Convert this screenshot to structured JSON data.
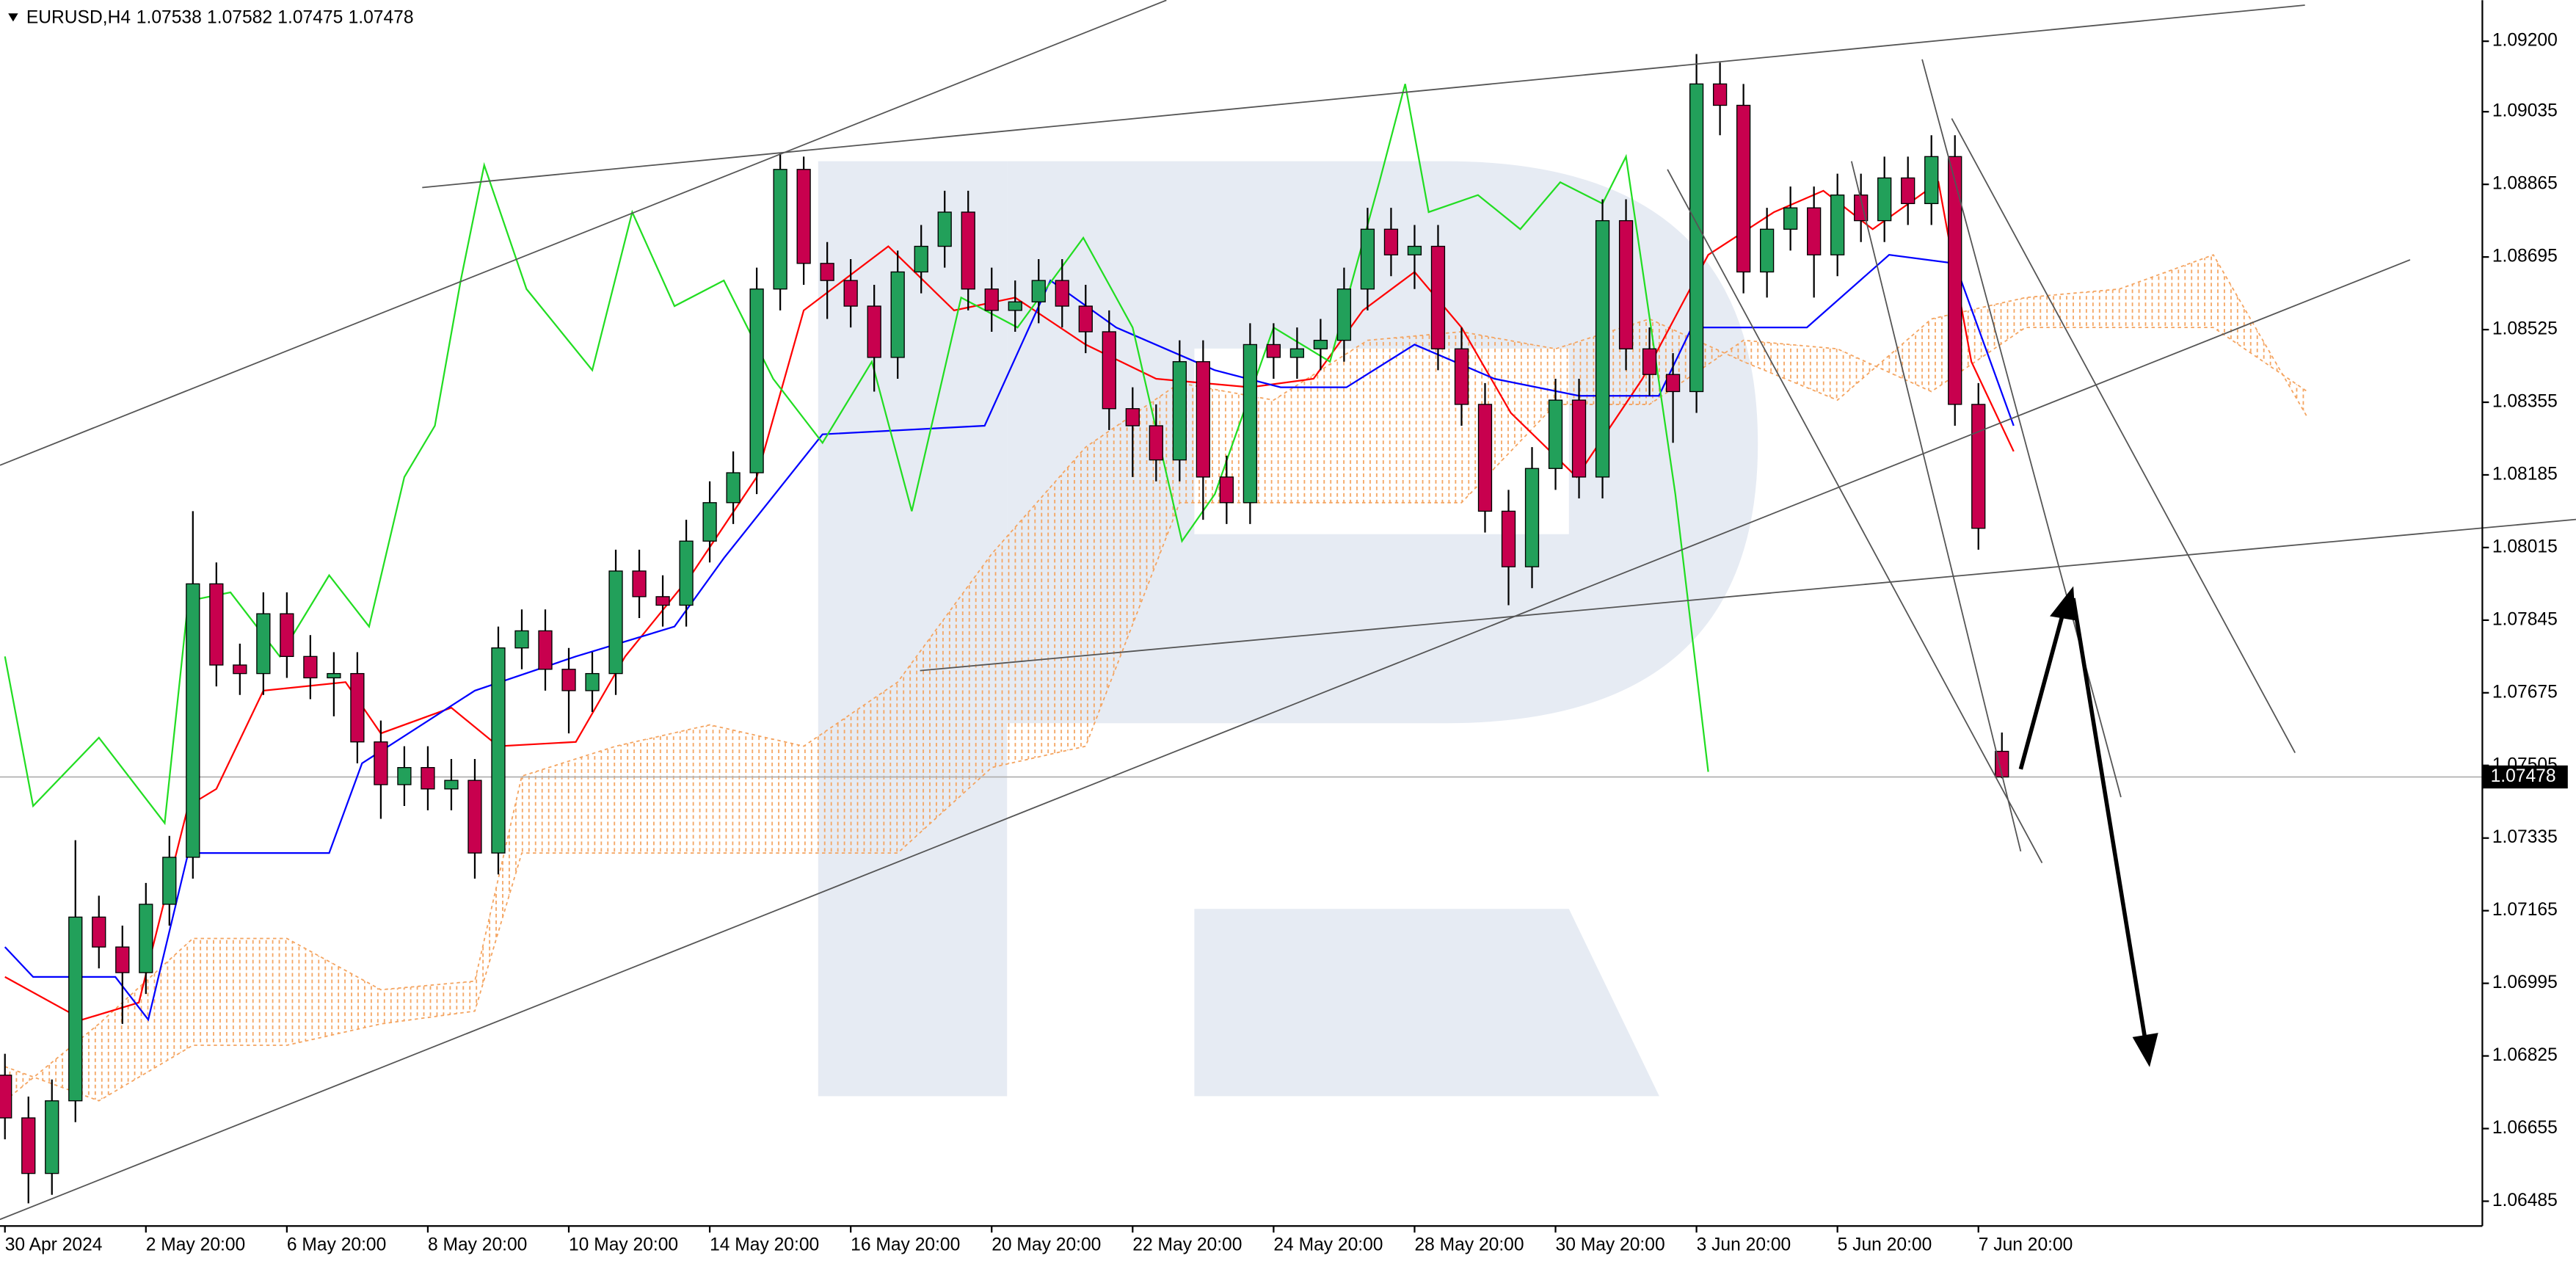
{
  "chart_data": {
    "type": "candlestick",
    "symbol": "EURUSD,H4",
    "up_color": "#22a05a",
    "down_color": "#c8004e",
    "open": [
      1.0678,
      1.0668,
      1.0655,
      1.0672,
      1.0715,
      1.0708,
      1.0702,
      1.0718,
      1.0729,
      1.0793,
      1.0774,
      1.0772,
      1.0786,
      1.0776,
      1.0771,
      1.0772,
      1.0756,
      1.0746,
      1.075,
      1.0745,
      1.0747,
      1.073,
      1.0778,
      1.0782,
      1.0773,
      1.0768,
      1.0772,
      1.0796,
      1.079,
      1.0788,
      1.0803,
      1.0812,
      1.0819,
      1.0862,
      1.089,
      1.0868,
      1.0864,
      1.0858,
      1.0846,
      1.0866,
      1.0872,
      1.088,
      1.0862,
      1.0857,
      1.0859,
      1.0864,
      1.0858,
      1.0852,
      1.0834,
      1.083,
      1.0822,
      1.0845,
      1.0818,
      1.0812,
      1.0849,
      1.0846,
      1.0848,
      1.085,
      1.0862,
      1.0876,
      1.087,
      1.0872,
      1.0848,
      1.0835,
      1.081,
      1.0797,
      1.082,
      1.0836,
      1.0818,
      1.0878,
      1.0848,
      1.0842,
      1.0838,
      1.091,
      1.0905,
      1.0866,
      1.0876,
      1.0881,
      1.087,
      1.0884,
      1.0878,
      1.0888,
      1.0882,
      1.0893,
      1.0835,
      1.07538
    ],
    "high": [
      1.0683,
      1.0673,
      1.0677,
      1.0733,
      1.072,
      1.0713,
      1.0723,
      1.0734,
      1.081,
      1.0798,
      1.0779,
      1.0791,
      1.0791,
      1.0781,
      1.0777,
      1.0777,
      1.0761,
      1.0755,
      1.0755,
      1.0752,
      1.0752,
      1.0783,
      1.0787,
      1.0787,
      1.0778,
      1.0777,
      1.0801,
      1.0801,
      1.0795,
      1.0808,
      1.0817,
      1.0824,
      1.0867,
      1.0894,
      1.0893,
      1.0873,
      1.0869,
      1.0863,
      1.0871,
      1.0877,
      1.0885,
      1.0885,
      1.0867,
      1.0864,
      1.0869,
      1.0869,
      1.0863,
      1.0857,
      1.0839,
      1.0835,
      1.085,
      1.085,
      1.0823,
      1.0854,
      1.0854,
      1.0853,
      1.0855,
      1.0867,
      1.0881,
      1.0881,
      1.0877,
      1.0877,
      1.0853,
      1.084,
      1.0815,
      1.0825,
      1.0841,
      1.0841,
      1.0883,
      1.0883,
      1.0853,
      1.0847,
      1.0917,
      1.0915,
      1.091,
      1.0881,
      1.0886,
      1.0886,
      1.0889,
      1.0889,
      1.0893,
      1.0893,
      1.0898,
      1.0898,
      1.084,
      1.07582
    ],
    "low": [
      1.0663,
      1.0648,
      1.065,
      1.0667,
      1.0703,
      1.069,
      1.0697,
      1.0713,
      1.0724,
      1.0769,
      1.0767,
      1.0767,
      1.0771,
      1.0766,
      1.0762,
      1.0751,
      1.0738,
      1.0741,
      1.074,
      1.074,
      1.0724,
      1.0725,
      1.0773,
      1.0768,
      1.0758,
      1.0763,
      1.0767,
      1.0785,
      1.0783,
      1.0783,
      1.0798,
      1.0807,
      1.0814,
      1.0857,
      1.0863,
      1.0855,
      1.0853,
      1.0838,
      1.0841,
      1.0861,
      1.0867,
      1.0857,
      1.0852,
      1.0852,
      1.0854,
      1.0853,
      1.0847,
      1.0829,
      1.0818,
      1.0817,
      1.0817,
      1.0808,
      1.0807,
      1.0807,
      1.0841,
      1.0841,
      1.0843,
      1.0845,
      1.0857,
      1.0865,
      1.0862,
      1.0843,
      1.083,
      1.0805,
      1.0788,
      1.0792,
      1.0815,
      1.0813,
      1.0813,
      1.0843,
      1.0837,
      1.0826,
      1.0833,
      1.0898,
      1.0861,
      1.086,
      1.0871,
      1.086,
      1.0865,
      1.0873,
      1.0873,
      1.0877,
      1.0877,
      1.083,
      1.0801,
      1.07475
    ],
    "close": [
      1.0668,
      1.0655,
      1.0672,
      1.0715,
      1.0708,
      1.0702,
      1.0718,
      1.0729,
      1.0793,
      1.0774,
      1.0772,
      1.0786,
      1.0776,
      1.0771,
      1.0772,
      1.0756,
      1.0746,
      1.075,
      1.0745,
      1.0747,
      1.073,
      1.0778,
      1.0782,
      1.0773,
      1.0768,
      1.0772,
      1.0796,
      1.079,
      1.0788,
      1.0803,
      1.0812,
      1.0819,
      1.0862,
      1.089,
      1.0868,
      1.0864,
      1.0858,
      1.0846,
      1.0866,
      1.0872,
      1.088,
      1.0862,
      1.0857,
      1.0859,
      1.0864,
      1.0858,
      1.0852,
      1.0834,
      1.083,
      1.0822,
      1.0845,
      1.0818,
      1.0812,
      1.0849,
      1.0846,
      1.0848,
      1.085,
      1.0862,
      1.0876,
      1.087,
      1.0872,
      1.0848,
      1.0835,
      1.081,
      1.0797,
      1.082,
      1.0836,
      1.0818,
      1.0878,
      1.0848,
      1.0842,
      1.0838,
      1.091,
      1.0905,
      1.0866,
      1.0876,
      1.0881,
      1.087,
      1.0884,
      1.0878,
      1.0888,
      1.0882,
      1.0893,
      1.0835,
      1.0806,
      1.07478
    ],
    "lines": [
      {
        "color": "#ff0000",
        "x": [
          0,
          3.3,
          5.7,
          7.8,
          9,
          11,
          14.5,
          16,
          19,
          21,
          24.3,
          26.4,
          29.2,
          32,
          34,
          37.6,
          40.4,
          43,
          46,
          49,
          53,
          55.7,
          57.8,
          60,
          62,
          64.1,
          66.9,
          69.7,
          72.5,
          75.3,
          77.4,
          79.5,
          82.3,
          83.7,
          85.5
        ],
        "values": [
          1.0701,
          1.0691,
          1.0695,
          1.0741,
          1.0745,
          1.0768,
          1.077,
          1.0758,
          1.0764,
          1.0755,
          1.0756,
          1.0776,
          1.0795,
          1.0818,
          1.0857,
          1.0872,
          1.0857,
          1.086,
          1.0849,
          1.0841,
          1.0839,
          1.0841,
          1.0857,
          1.0866,
          1.0853,
          1.0833,
          1.0818,
          1.0841,
          1.087,
          1.088,
          1.0885,
          1.0876,
          1.0887,
          1.0845,
          1.0824
        ]
      },
      {
        "color": "#0000ff",
        "x": [
          0,
          1.2,
          4.7,
          6.1,
          7.8,
          13.8,
          15.2,
          20,
          24.3,
          28.5,
          30.6,
          34.8,
          41.7,
          44.5,
          47.3,
          51.5,
          54.3,
          57.1,
          60,
          63.4,
          67,
          70.4,
          71.8,
          76.7,
          80.2,
          83,
          85.5
        ],
        "values": [
          1.0708,
          1.0701,
          1.0701,
          1.0691,
          1.073,
          1.073,
          1.0751,
          1.0768,
          1.0776,
          1.0783,
          1.0799,
          1.0828,
          1.083,
          1.0864,
          1.0853,
          1.0843,
          1.0839,
          1.0839,
          1.0849,
          1.0841,
          1.0837,
          1.0837,
          1.0853,
          1.0853,
          1.087,
          1.0868,
          1.083
        ]
      },
      {
        "color": "#22dd22",
        "x": [
          0,
          1.2,
          4,
          6.8,
          7.8,
          9.6,
          11.7,
          13.8,
          15.5,
          17,
          18.3,
          19.4,
          20.4,
          22.2,
          25,
          26.7,
          28.5,
          30.6,
          32.7,
          34.8,
          36.9,
          38.6,
          40.7,
          43.1,
          45.9,
          48,
          50.1,
          51.5,
          54,
          56.4,
          58.5,
          59.6,
          60.6,
          62.7,
          64.5,
          66.2,
          68,
          69,
          71.1,
          72.5
        ],
        "values": [
          1.0776,
          1.0741,
          1.0757,
          1.0737,
          1.0789,
          1.0791,
          1.0776,
          1.0795,
          1.0783,
          1.0818,
          1.083,
          1.0864,
          1.0891,
          1.0862,
          1.0843,
          1.088,
          1.0858,
          1.0864,
          1.0841,
          1.0826,
          1.0845,
          1.081,
          1.086,
          1.0853,
          1.0874,
          1.0853,
          1.0803,
          1.0814,
          1.0853,
          1.0845,
          1.0887,
          1.091,
          1.088,
          1.0884,
          1.0876,
          1.0887,
          1.0882,
          1.0893,
          1.0814,
          1.0749
        ]
      }
    ],
    "cloud": {
      "color": "#f4a460",
      "x": [
        0,
        4,
        8,
        12,
        16,
        20,
        22,
        26,
        30,
        34,
        38,
        42,
        46,
        50,
        54,
        58,
        62,
        66,
        70,
        74,
        78,
        82,
        86,
        90,
        94,
        98
      ],
      "span_a": [
        1.0672,
        1.069,
        1.071,
        1.071,
        1.0698,
        1.07,
        1.0748,
        1.0755,
        1.076,
        1.0755,
        1.077,
        1.08,
        1.0825,
        1.084,
        1.0836,
        1.085,
        1.0852,
        1.0848,
        1.0855,
        1.0845,
        1.0836,
        1.0855,
        1.086,
        1.0862,
        1.087,
        1.0832
      ],
      "span_b": [
        1.068,
        1.0672,
        1.0685,
        1.0685,
        1.069,
        1.0693,
        1.073,
        1.073,
        1.073,
        1.073,
        1.073,
        1.075,
        1.0755,
        1.0812,
        1.0812,
        1.0812,
        1.0812,
        1.0835,
        1.0835,
        1.085,
        1.0848,
        1.0838,
        1.0853,
        1.0853,
        1.0853,
        1.0838
      ]
    },
    "xlim": [
      -0.21,
      105.45
    ],
    "xticks": [
      {
        "value": 0,
        "label": "30 Apr 2024"
      },
      {
        "value": 6,
        "label": "2 May 20:00"
      },
      {
        "value": 12,
        "label": "6 May 20:00"
      },
      {
        "value": 18,
        "label": "8 May 20:00"
      },
      {
        "value": 24,
        "label": "10 May 20:00"
      },
      {
        "value": 30,
        "label": "14 May 20:00"
      },
      {
        "value": 36,
        "label": "16 May 20:00"
      },
      {
        "value": 42,
        "label": "20 May 20:00"
      },
      {
        "value": 48,
        "label": "22 May 20:00"
      },
      {
        "value": 54,
        "label": "24 May 20:00"
      },
      {
        "value": 60,
        "label": "28 May 20:00"
      },
      {
        "value": 66,
        "label": "30 May 20:00"
      },
      {
        "value": 72,
        "label": "3 Jun 20:00"
      },
      {
        "value": 78,
        "label": "5 Jun 20:00"
      },
      {
        "value": 84,
        "label": "7 Jun 20:00"
      }
    ],
    "ylim": [
      1.06427,
      1.09296
    ],
    "yticks": [
      {
        "value": 1.092,
        "label": "1.09200"
      },
      1.09035,
      1.08865,
      1.08695,
      1.08525,
      1.08355,
      1.08185,
      1.08015,
      1.07845,
      1.07675,
      1.07505,
      1.07335,
      1.07165,
      1.06995,
      1.06825,
      1.06655,
      1.06485
    ]
  }
}
